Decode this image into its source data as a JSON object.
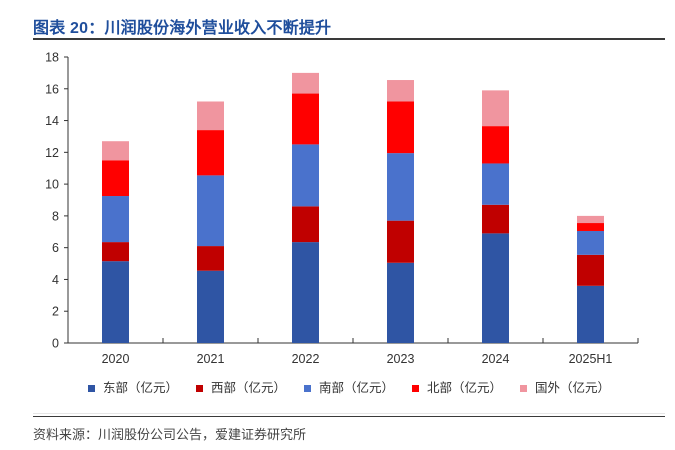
{
  "header": {
    "title": "图表 20：川润股份海外营业收入不断提升"
  },
  "footer": {
    "source": "资料来源：川润股份公司公告，爱建证券研究所"
  },
  "chart_data": {
    "type": "bar",
    "stacked": true,
    "title": "图表 20：川润股份海外营业收入不断提升",
    "xlabel": "",
    "ylabel": "",
    "categories": [
      "2020",
      "2021",
      "2022",
      "2023",
      "2024",
      "2025H1"
    ],
    "ylim": [
      0,
      18
    ],
    "yticks": [
      0,
      2,
      4,
      6,
      8,
      10,
      12,
      14,
      16,
      18
    ],
    "grid": false,
    "legend_position": "bottom",
    "series": [
      {
        "name": "东部（亿元）",
        "color": "#2f55a4",
        "values": [
          5.15,
          4.55,
          6.35,
          5.05,
          6.9,
          3.6
        ]
      },
      {
        "name": "西部（亿元）",
        "color": "#c00000",
        "values": [
          1.2,
          1.55,
          2.25,
          2.65,
          1.8,
          1.95
        ]
      },
      {
        "name": "南部（亿元）",
        "color": "#4a72cc",
        "values": [
          2.9,
          4.45,
          3.9,
          4.25,
          2.6,
          1.5
        ]
      },
      {
        "name": "北部（亿元）",
        "color": "#ff0000",
        "values": [
          2.25,
          2.85,
          3.2,
          3.25,
          2.35,
          0.5
        ]
      },
      {
        "name": "国外（亿元）",
        "color": "#f0959f",
        "values": [
          1.2,
          1.8,
          1.3,
          1.35,
          2.25,
          0.45
        ]
      }
    ]
  }
}
